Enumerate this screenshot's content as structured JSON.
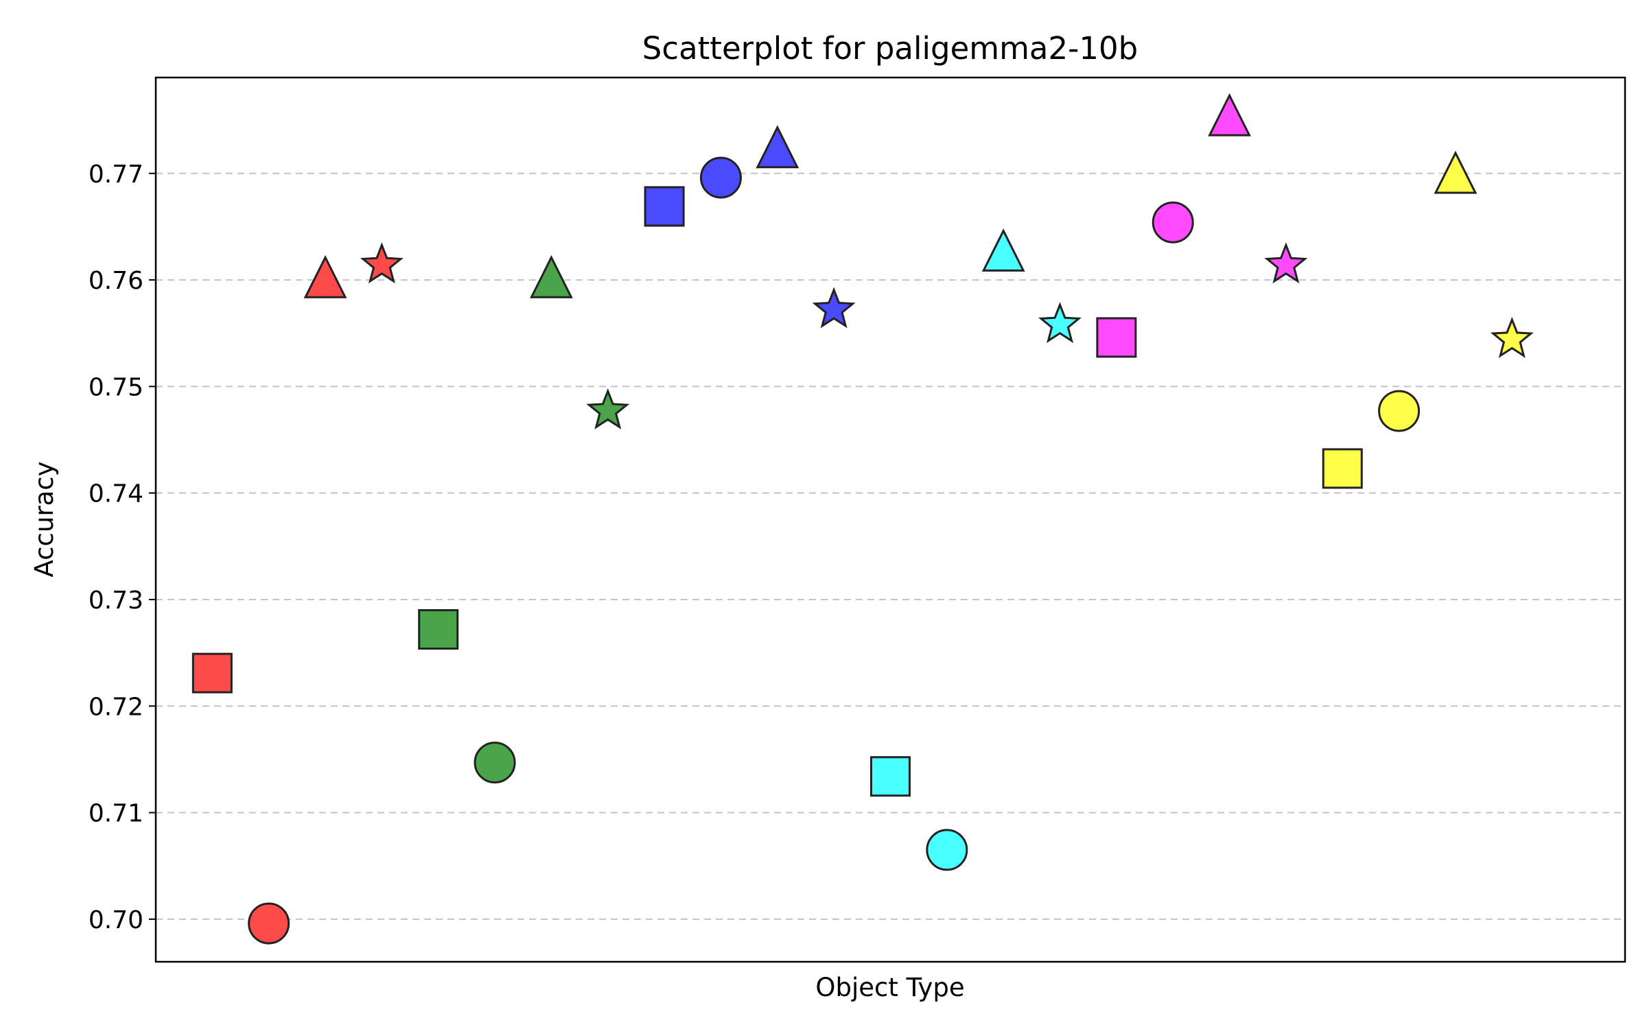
{
  "chart_data": {
    "type": "scatter",
    "title": "Scatterplot for paligemma2-10b",
    "xlabel": "Object Type",
    "ylabel": "Accuracy",
    "ylim": [
      0.696,
      0.779
    ],
    "yticks": [
      "0.70",
      "0.71",
      "0.72",
      "0.73",
      "0.74",
      "0.75",
      "0.76",
      "0.77"
    ],
    "grid": "y-dashed",
    "xticks_visible": false,
    "xlim": [
      0,
      26
    ],
    "colors": {
      "red": "#ff4040",
      "green": "#40a040",
      "blue": "#4040ff",
      "cyan": "#40ffff",
      "magenta": "#ff40ff",
      "yellow": "#ffff40"
    },
    "points": [
      {
        "x": 1,
        "y": 0.7231,
        "marker": "square",
        "color": "#ff4040"
      },
      {
        "x": 2,
        "y": 0.6996,
        "marker": "circle",
        "color": "#ff4040"
      },
      {
        "x": 3,
        "y": 0.7598,
        "marker": "triangle",
        "color": "#ff4040"
      },
      {
        "x": 4,
        "y": 0.7614,
        "marker": "star",
        "color": "#ff4040"
      },
      {
        "x": 5,
        "y": 0.7272,
        "marker": "square",
        "color": "#40a040"
      },
      {
        "x": 6,
        "y": 0.7147,
        "marker": "circle",
        "color": "#40a040"
      },
      {
        "x": 7,
        "y": 0.7598,
        "marker": "triangle",
        "color": "#40a040"
      },
      {
        "x": 8,
        "y": 0.7477,
        "marker": "star",
        "color": "#40a040"
      },
      {
        "x": 9,
        "y": 0.7669,
        "marker": "square",
        "color": "#4040ff"
      },
      {
        "x": 10,
        "y": 0.7696,
        "marker": "circle",
        "color": "#4040ff"
      },
      {
        "x": 11,
        "y": 0.772,
        "marker": "triangle",
        "color": "#4040ff"
      },
      {
        "x": 12,
        "y": 0.7572,
        "marker": "star",
        "color": "#4040ff"
      },
      {
        "x": 13,
        "y": 0.7134,
        "marker": "square",
        "color": "#40ffff"
      },
      {
        "x": 14,
        "y": 0.7065,
        "marker": "circle",
        "color": "#40ffff"
      },
      {
        "x": 15,
        "y": 0.7623,
        "marker": "triangle",
        "color": "#40ffff"
      },
      {
        "x": 16,
        "y": 0.7558,
        "marker": "star",
        "color": "#40ffff"
      },
      {
        "x": 17,
        "y": 0.7546,
        "marker": "square",
        "color": "#ff40ff"
      },
      {
        "x": 18,
        "y": 0.7654,
        "marker": "circle",
        "color": "#ff40ff"
      },
      {
        "x": 19,
        "y": 0.775,
        "marker": "triangle",
        "color": "#ff40ff"
      },
      {
        "x": 20,
        "y": 0.7614,
        "marker": "star",
        "color": "#ff40ff"
      },
      {
        "x": 21,
        "y": 0.7423,
        "marker": "square",
        "color": "#ffff40"
      },
      {
        "x": 22,
        "y": 0.7477,
        "marker": "circle",
        "color": "#ffff40"
      },
      {
        "x": 23,
        "y": 0.7696,
        "marker": "triangle",
        "color": "#ffff40"
      },
      {
        "x": 24,
        "y": 0.7544,
        "marker": "star",
        "color": "#ffff40"
      }
    ]
  }
}
